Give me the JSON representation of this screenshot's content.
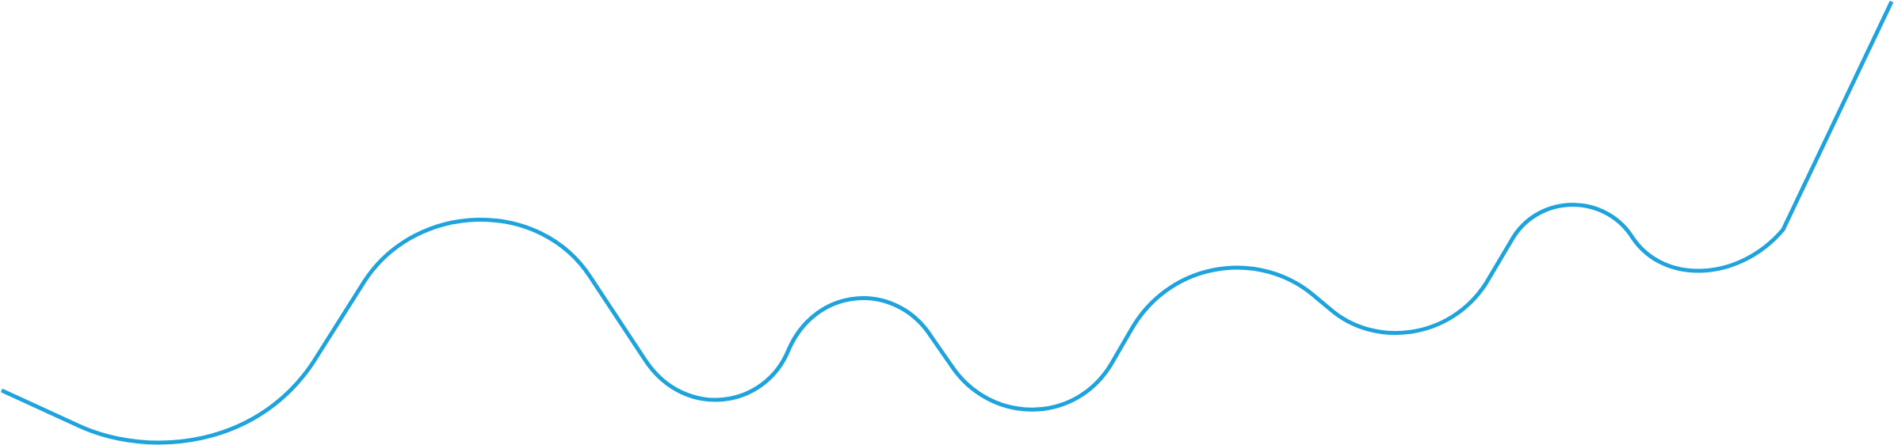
{
  "graphic": {
    "stroke_color": "#1fa3dc",
    "background_color": "#ffffff"
  }
}
